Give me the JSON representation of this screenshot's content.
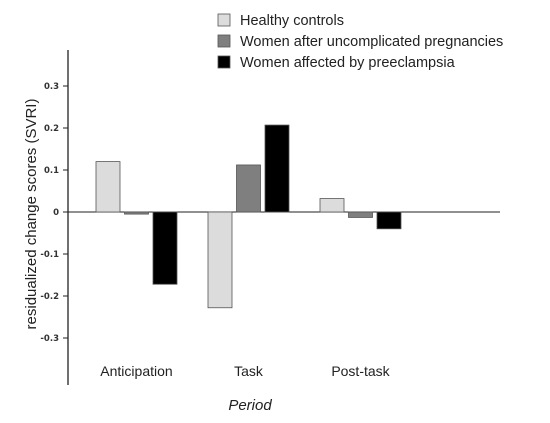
{
  "chart_data": {
    "type": "bar",
    "categories": [
      "Anticipation",
      "Task",
      "Post-task"
    ],
    "series": [
      {
        "name": "Healthy controls",
        "color": "#dcdcdc",
        "values": [
          0.12,
          -0.228,
          0.032
        ]
      },
      {
        "name": "Women after uncomplicated pregnancies",
        "color": "#7f7f7f",
        "values": [
          -0.005,
          0.112,
          -0.013
        ]
      },
      {
        "name": "Women affected by preeclampsia",
        "color": "#000000",
        "values": [
          -0.172,
          0.207,
          -0.04
        ]
      }
    ],
    "xlabel": "Period",
    "ylabel": "residualized change scores (SVRI)",
    "ylim": [
      -0.4,
      0.38
    ],
    "yticks": [
      0.3,
      0.2,
      0.1,
      0,
      -0.1,
      -0.2,
      -0.3
    ],
    "ytick_labels": [
      "0.3",
      "0.2",
      "0.1",
      "0",
      "-0.1",
      "-0.2",
      "-0.3"
    ],
    "grid": false,
    "legend_position": "top-right"
  }
}
